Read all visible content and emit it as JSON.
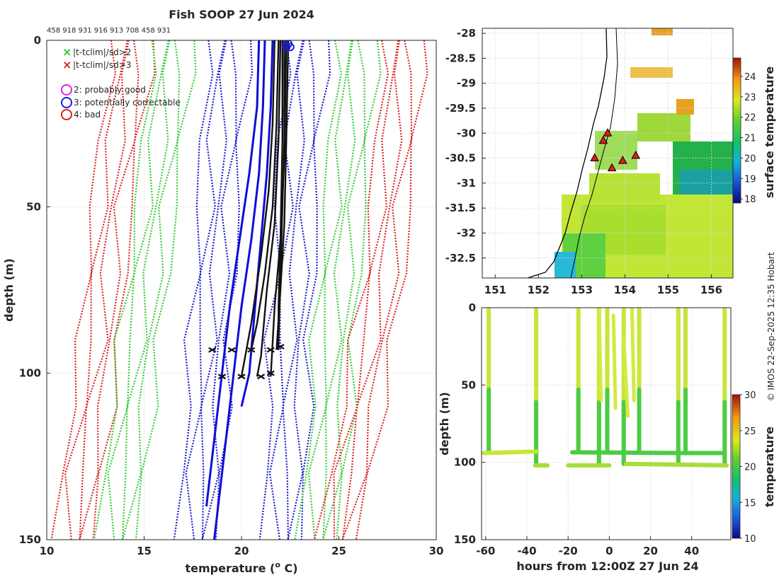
{
  "chart_data": [
    {
      "panel": "profiles",
      "type": "line",
      "title": "Fish SOOP 27 Jun 2024",
      "top_text": "458 918 931 916 913 708 458 931",
      "xlabel": "temperature (°C)",
      "xlabel_main": "temperature (",
      "xlabel_sup": "o",
      "xlabel_end": " C)",
      "ylabel": "depth (m)",
      "xlim": [
        10,
        30
      ],
      "ylim": [
        0,
        150
      ],
      "xticks": [
        "10",
        "15",
        "20",
        "25",
        "30"
      ],
      "yticks": [
        "0",
        "50",
        "100",
        "150"
      ],
      "legend": {
        "markers": [
          {
            "symbol": "×",
            "color": "#22cc22",
            "label": "|t-tclim|/sd>2"
          },
          {
            "symbol": "×",
            "color": "#dd2222",
            "label": "|t-tclim|/sd>3"
          }
        ],
        "flags": [
          {
            "color": "#dd22dd",
            "label": "2: probably good"
          },
          {
            "color": "#1a1ae6",
            "label": "3: potentially correctable"
          },
          {
            "color": "#e61a1a",
            "label": "4: bad"
          }
        ]
      },
      "climatology": {
        "sd3_low": [
          [
            14.3,
            0
          ],
          [
            14.2,
            10
          ],
          [
            13.8,
            30
          ],
          [
            13.3,
            50
          ],
          [
            13.0,
            70
          ],
          [
            12.8,
            90
          ],
          [
            12.3,
            110
          ],
          [
            11.8,
            130
          ],
          [
            11.5,
            150
          ]
        ],
        "sd2_low": [
          [
            16.4,
            0
          ],
          [
            16.3,
            10
          ],
          [
            16.0,
            30
          ],
          [
            15.6,
            50
          ],
          [
            15.2,
            70
          ],
          [
            14.8,
            90
          ],
          [
            14.4,
            110
          ],
          [
            14.0,
            130
          ],
          [
            13.7,
            150
          ]
        ],
        "sd1_low": [
          [
            19.3,
            0
          ],
          [
            19.2,
            10
          ],
          [
            19.0,
            30
          ],
          [
            18.8,
            50
          ],
          [
            18.6,
            70
          ],
          [
            18.4,
            90
          ],
          [
            18.2,
            110
          ],
          [
            18.0,
            130
          ],
          [
            17.8,
            150
          ]
        ],
        "sd1_high": [
          [
            23.3,
            0
          ],
          [
            23.2,
            10
          ],
          [
            23.0,
            30
          ],
          [
            22.8,
            50
          ],
          [
            22.7,
            70
          ],
          [
            22.5,
            90
          ],
          [
            22.4,
            110
          ],
          [
            22.3,
            130
          ],
          [
            22.2,
            150
          ]
        ],
        "sd2_high": [
          [
            25.8,
            0
          ],
          [
            25.8,
            10
          ],
          [
            25.6,
            30
          ],
          [
            25.3,
            50
          ],
          [
            25.0,
            70
          ],
          [
            24.8,
            90
          ],
          [
            24.6,
            110
          ],
          [
            24.3,
            130
          ],
          [
            24.0,
            150
          ]
        ],
        "sd3_high": [
          [
            28.2,
            0
          ],
          [
            28.2,
            10
          ],
          [
            28.0,
            30
          ],
          [
            27.6,
            50
          ],
          [
            27.3,
            70
          ],
          [
            26.8,
            90
          ],
          [
            26.2,
            110
          ],
          [
            25.6,
            130
          ],
          [
            25.0,
            150
          ]
        ]
      },
      "profiles_blue": [
        [
          [
            21.2,
            0
          ],
          [
            21.1,
            20
          ],
          [
            20.9,
            40
          ],
          [
            20.5,
            60
          ],
          [
            20.0,
            80
          ],
          [
            19.6,
            100
          ],
          [
            19.2,
            120
          ],
          [
            18.8,
            140
          ],
          [
            18.6,
            150
          ]
        ],
        [
          [
            20.9,
            0
          ],
          [
            20.8,
            20
          ],
          [
            20.4,
            40
          ],
          [
            19.9,
            60
          ],
          [
            19.4,
            80
          ],
          [
            19.0,
            100
          ],
          [
            18.6,
            120
          ],
          [
            18.2,
            140
          ]
        ],
        [
          [
            21.6,
            0
          ],
          [
            21.5,
            20
          ],
          [
            21.3,
            40
          ],
          [
            21.0,
            60
          ],
          [
            20.7,
            80
          ],
          [
            20.4,
            100
          ],
          [
            20.0,
            110
          ]
        ]
      ],
      "profiles_black": [
        [
          [
            22.2,
            0
          ],
          [
            22.2,
            30
          ],
          [
            22.1,
            50
          ],
          [
            22.0,
            70
          ],
          [
            21.9,
            90
          ],
          [
            21.8,
            93
          ]
        ],
        [
          [
            21.9,
            0
          ],
          [
            21.8,
            25
          ],
          [
            21.6,
            50
          ],
          [
            21.2,
            70
          ],
          [
            20.8,
            85
          ],
          [
            20.5,
            93
          ]
        ],
        [
          [
            22.4,
            0
          ],
          [
            22.3,
            30
          ],
          [
            22.2,
            55
          ],
          [
            22.0,
            75
          ],
          [
            21.8,
            93
          ]
        ],
        [
          [
            21.7,
            0
          ],
          [
            21.6,
            25
          ],
          [
            21.4,
            45
          ],
          [
            21.0,
            65
          ],
          [
            20.5,
            85
          ],
          [
            20.0,
            101
          ]
        ],
        [
          [
            22.0,
            0
          ],
          [
            21.9,
            30
          ],
          [
            21.7,
            55
          ],
          [
            21.3,
            75
          ],
          [
            21.0,
            95
          ],
          [
            20.8,
            101
          ]
        ],
        [
          [
            22.3,
            0
          ],
          [
            22.2,
            35
          ],
          [
            22.0,
            60
          ],
          [
            21.7,
            80
          ],
          [
            21.5,
            101
          ]
        ],
        [
          [
            22.1,
            0
          ],
          [
            22.1,
            30
          ],
          [
            22.0,
            60
          ],
          [
            21.9,
            80
          ],
          [
            21.9,
            93
          ]
        ]
      ],
      "bottom_markers": [
        [
          18.5,
          93
        ],
        [
          19.5,
          93
        ],
        [
          20.5,
          93
        ],
        [
          21.5,
          93
        ],
        [
          22.0,
          92
        ],
        [
          19.0,
          101
        ],
        [
          20.0,
          101
        ],
        [
          21.0,
          101
        ],
        [
          21.5,
          100
        ]
      ],
      "start_circles": [
        [
          22.3,
          2
        ],
        [
          22.4,
          1
        ],
        [
          22.5,
          2
        ]
      ]
    },
    {
      "panel": "map",
      "type": "heatmap",
      "xlim": [
        150.7,
        156.5
      ],
      "ylim": [
        -32.9,
        -27.9
      ],
      "xticks": [
        "151",
        "152",
        "153",
        "154",
        "155",
        "156"
      ],
      "yticks": [
        "-28",
        "-28.5",
        "-29",
        "-29.5",
        "-30",
        "-30.5",
        "-31",
        "-31.5",
        "-32",
        "-32.5"
      ],
      "colorbar_label": "surface temperature",
      "colorbar_ticks": [
        "24",
        "23",
        "22",
        "21",
        "20",
        "19",
        "18"
      ],
      "clim": [
        17.8,
        24.9
      ],
      "xbt_drops": [
        [
          153.6,
          -30.0
        ],
        [
          153.5,
          -30.15
        ],
        [
          153.3,
          -30.5
        ],
        [
          153.7,
          -30.7
        ],
        [
          153.95,
          -30.55
        ],
        [
          154.25,
          -30.45
        ]
      ]
    },
    {
      "panel": "time_depth",
      "type": "scatter",
      "xlabel": "hours from 12:00Z 27 Jun 24",
      "ylabel": "depth (m)",
      "xlim": [
        -62,
        59
      ],
      "ylim": [
        0,
        150
      ],
      "xticks": [
        "-60",
        "-40",
        "-20",
        "0",
        "20",
        "40"
      ],
      "yticks": [
        "0",
        "50",
        "100",
        "150"
      ],
      "colorbar_label": "temperature",
      "colorbar_ticks": [
        "30",
        "25",
        "20",
        "15",
        "10"
      ],
      "clim": [
        10,
        30
      ],
      "drop_hours": [
        -58.5,
        -35.5,
        -15,
        -5,
        -1,
        7,
        14.5,
        33.5,
        37,
        56
      ]
    }
  ],
  "credit": "© IMOS 22-Sep-2025 12:35 Hobart"
}
